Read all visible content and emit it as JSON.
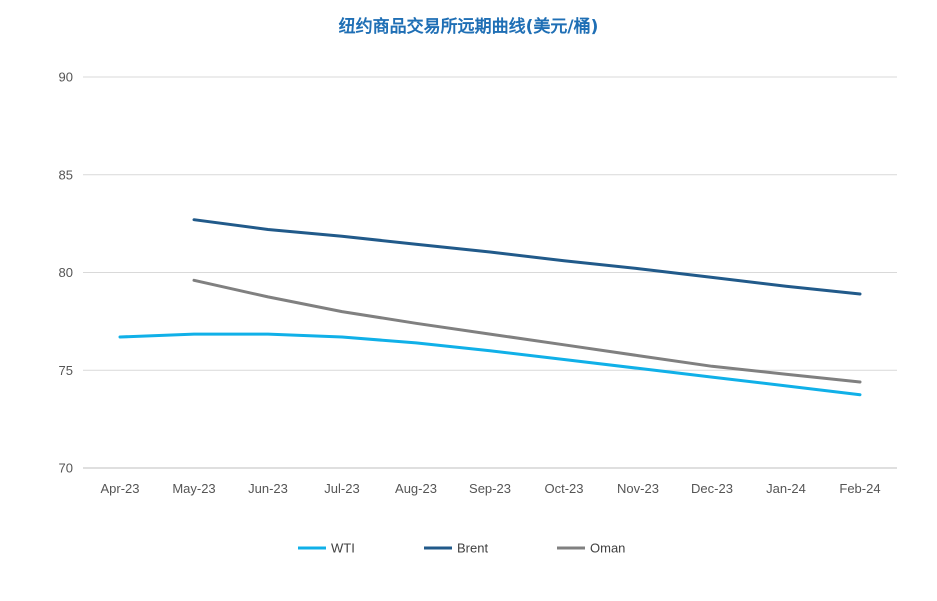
{
  "chart_data": {
    "type": "line",
    "title": "纽约商品交易所远期曲线(美元/桶)",
    "categories": [
      "Apr-23",
      "May-23",
      "Jun-23",
      "Jul-23",
      "Aug-23",
      "Sep-23",
      "Oct-23",
      "Nov-23",
      "Dec-23",
      "Jan-24",
      "Feb-24"
    ],
    "ylim": [
      70,
      90
    ],
    "yticks": [
      70,
      75,
      80,
      85,
      90
    ],
    "grid": true,
    "legend_position": "bottom",
    "series": [
      {
        "name": "WTI",
        "color": "#10b0e8",
        "values": [
          76.7,
          76.85,
          76.85,
          76.7,
          76.4,
          76.0,
          75.55,
          75.1,
          74.65,
          74.2,
          73.75
        ]
      },
      {
        "name": "Brent",
        "color": "#215a8a",
        "values": [
          null,
          82.7,
          82.2,
          81.85,
          81.45,
          81.05,
          80.6,
          80.2,
          79.75,
          79.3,
          78.9
        ]
      },
      {
        "name": "Oman",
        "color": "#808080",
        "values": [
          null,
          79.6,
          78.75,
          78.0,
          77.4,
          76.85,
          76.3,
          75.75,
          75.2,
          74.8,
          74.4
        ]
      }
    ]
  }
}
